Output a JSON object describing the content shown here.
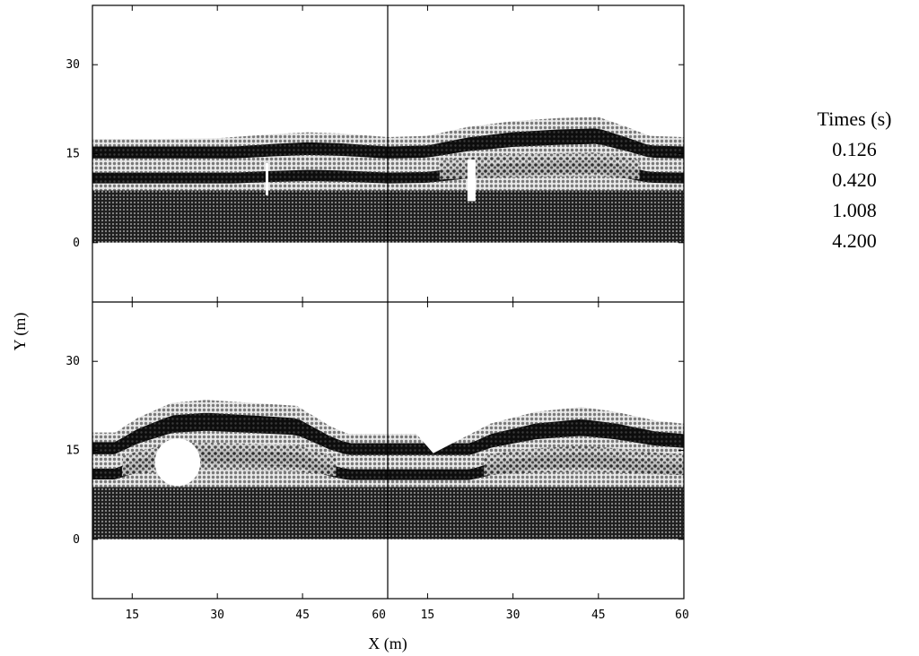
{
  "chart_data": {
    "type": "scatter",
    "description_of_panels": "",
    "xlabel": "X (m)",
    "ylabel": "Y (m)",
    "xlim": [
      8,
      60
    ],
    "ylim": [
      -10,
      40
    ],
    "xticks": [
      15,
      30,
      45,
      60
    ],
    "yticks": [
      0,
      15,
      30
    ],
    "grid": false,
    "legend_placement": "right",
    "legend": {
      "title": "Times (s)",
      "entries": [
        "0.126",
        "0.420",
        "1.008",
        "4.200"
      ]
    },
    "panels": [
      {
        "time": "0.126",
        "position": "top-left",
        "surface": [
          [
            8,
            17.5
          ],
          [
            20,
            17.5
          ],
          [
            30,
            17.6
          ],
          [
            40,
            18.3
          ],
          [
            46,
            18.6
          ],
          [
            52,
            18.4
          ],
          [
            60,
            17.8
          ]
        ],
        "bottom": 0,
        "layers": [
          {
            "top_edge": 17.8,
            "tone": "light"
          },
          {
            "top_edge": 16.2,
            "tone": "dark"
          },
          {
            "top_edge": 14.2,
            "tone": "light"
          },
          {
            "top_edge": 11.8,
            "tone": "dark"
          },
          {
            "top_edge": 10.0,
            "tone": "light"
          },
          {
            "top_edge": 8.8,
            "tone": "dark"
          }
        ]
      },
      {
        "time": "0.420",
        "position": "top-right",
        "surface": [
          [
            8,
            17.8
          ],
          [
            15,
            18.0
          ],
          [
            22,
            19.5
          ],
          [
            30,
            20.5
          ],
          [
            38,
            21.0
          ],
          [
            45,
            21.2
          ],
          [
            50,
            19.5
          ],
          [
            54,
            18.0
          ],
          [
            60,
            17.8
          ]
        ],
        "bottom": 0,
        "layers": [
          {
            "top_edge": 17.8,
            "tone": "light"
          },
          {
            "top_edge": 16.2,
            "tone": "dark"
          },
          {
            "top_edge": 14.2,
            "tone": "light"
          },
          {
            "top_edge": 11.8,
            "tone": "dark"
          },
          {
            "top_edge": 10.0,
            "tone": "light"
          },
          {
            "top_edge": 8.8,
            "tone": "dark"
          }
        ]
      },
      {
        "time": "1.008",
        "position": "bottom-left",
        "surface": [
          [
            8,
            18.0
          ],
          [
            12,
            18.0
          ],
          [
            16,
            20.5
          ],
          [
            22,
            23.0
          ],
          [
            28,
            23.5
          ],
          [
            36,
            23.0
          ],
          [
            44,
            22.5
          ],
          [
            50,
            19.0
          ],
          [
            53,
            17.8
          ],
          [
            60,
            17.8
          ]
        ],
        "bottom": 0,
        "cavity": {
          "x": 23,
          "y": 13,
          "r": 4
        },
        "layers": [
          {
            "top_edge": 17.8,
            "tone": "light"
          },
          {
            "top_edge": 16.2,
            "tone": "dark"
          },
          {
            "top_edge": 14.2,
            "tone": "light"
          },
          {
            "top_edge": 11.8,
            "tone": "dark"
          },
          {
            "top_edge": 10.0,
            "tone": "light"
          },
          {
            "top_edge": 8.8,
            "tone": "dark"
          }
        ]
      },
      {
        "time": "4.200",
        "position": "bottom-right",
        "surface": [
          [
            8,
            17.8
          ],
          [
            13,
            17.8
          ],
          [
            16,
            14.5
          ],
          [
            20,
            16.5
          ],
          [
            26,
            19.5
          ],
          [
            34,
            21.5
          ],
          [
            42,
            22.3
          ],
          [
            48,
            21.5
          ],
          [
            55,
            20.0
          ],
          [
            60,
            19.5
          ]
        ],
        "bottom": 0,
        "layers": [
          {
            "top_edge": 17.8,
            "tone": "light"
          },
          {
            "top_edge": 16.2,
            "tone": "dark"
          },
          {
            "top_edge": 14.2,
            "tone": "light"
          },
          {
            "top_edge": 11.8,
            "tone": "dark"
          },
          {
            "top_edge": 10.0,
            "tone": "light"
          },
          {
            "top_edge": 8.8,
            "tone": "dark"
          }
        ]
      }
    ],
    "colors": {
      "light": "#bdbdbd",
      "dark": "#1a1a1a",
      "mid": "#6f6f6f",
      "frame": "#000000"
    }
  }
}
